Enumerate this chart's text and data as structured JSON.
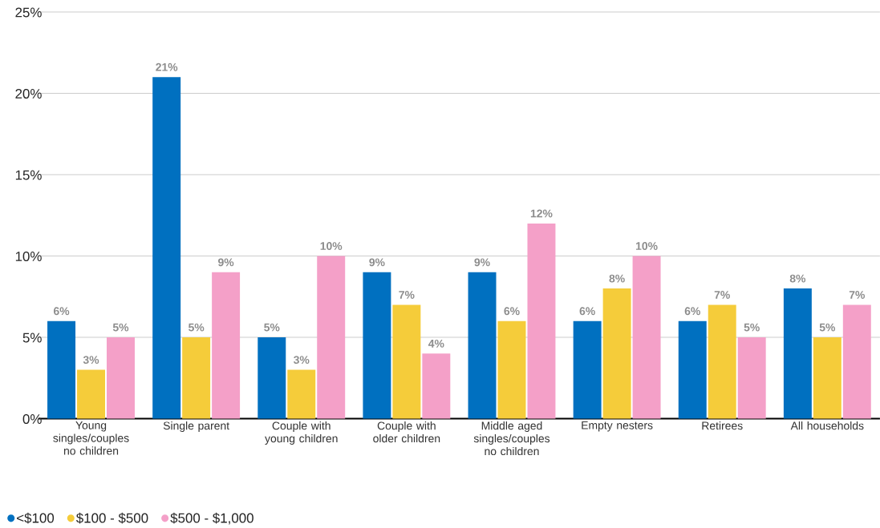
{
  "chart_data": {
    "type": "bar",
    "categories": [
      "Young singles/couples no children",
      "Single parent",
      "Couple with young children",
      "Couple with older children",
      "Middle aged singles/couples no children",
      "Empty nesters",
      "Retirees",
      "All households"
    ],
    "series": [
      {
        "name": "<$100",
        "color": "#0070c0",
        "values": [
          6,
          21,
          5,
          9,
          9,
          6,
          6,
          8
        ],
        "value_labels": [
          "6%",
          "21%",
          "5%",
          "9%",
          "9%",
          "6%",
          "6%",
          "8%"
        ]
      },
      {
        "name": "$100 - $500",
        "color": "#f5cc3a",
        "values": [
          3,
          5,
          3,
          7,
          6,
          8,
          7,
          5
        ],
        "value_labels": [
          "3%",
          "5%",
          "3%",
          "7%",
          "6%",
          "8%",
          "7%",
          "5%"
        ]
      },
      {
        "name": "$500 - $1,000",
        "color": "#f4a0c8",
        "values": [
          5,
          9,
          10,
          4,
          12,
          10,
          5,
          7
        ],
        "value_labels": [
          "5%",
          "9%",
          "10%",
          "4%",
          "12%",
          "10%",
          "5%",
          "7%"
        ]
      }
    ],
    "ylim": [
      0,
      25
    ],
    "yticks": [
      {
        "value": 0,
        "label": "0%"
      },
      {
        "value": 5,
        "label": "5%"
      },
      {
        "value": 10,
        "label": "10%"
      },
      {
        "value": 15,
        "label": "15%"
      },
      {
        "value": 20,
        "label": "20%"
      },
      {
        "value": 25,
        "label": "25%"
      }
    ],
    "grid": "y",
    "legend": "bottom left"
  }
}
